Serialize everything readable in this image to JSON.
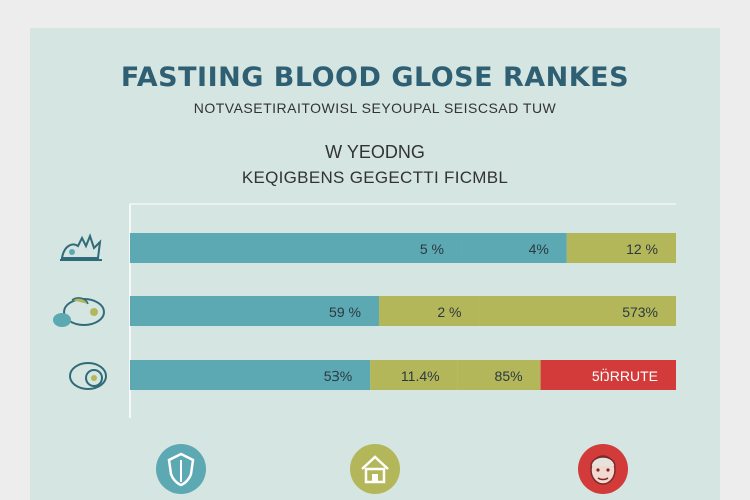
{
  "header": {
    "title": "FASTIING BLOOD GLOSE RANKES",
    "subtitle": "NOTVASETIRAITOWISL SEYOUPAL SEISCSAD TUW",
    "heading2": "W YEODNG",
    "heading3": "KEQIGBENS GEGECTTI FICMBL"
  },
  "colors": {
    "teal": "#5ca8b3",
    "olive": "#b4b65a",
    "red": "#d33b3b",
    "title": "#2f5f72",
    "panel": "#d5e5e1"
  },
  "chart_data": {
    "type": "bar",
    "orientation": "horizontal",
    "stacked": true,
    "grid": false,
    "rows": [
      {
        "icon": "hands-illustration-icon",
        "segments": [
          {
            "value": 76,
            "label": "5 %",
            "color": "#5ca8b3"
          },
          {
            "value": 24,
            "label": "4%",
            "color": "#5ca8b3"
          },
          {
            "value": 25,
            "label": "12 %",
            "color": "#b4b65a"
          }
        ]
      },
      {
        "icon": "organ-illustration-icon",
        "segments": [
          {
            "value": 57,
            "label": "59 %",
            "color": "#5ca8b3"
          },
          {
            "value": 23,
            "label": "2 %",
            "color": "#b4b65a"
          },
          {
            "value": 45,
            "label": "573%",
            "color": "#b4b65a"
          }
        ]
      },
      {
        "icon": "scale-illustration-icon",
        "segments": [
          {
            "value": 55,
            "label": "5Ɜ%",
            "color": "#5ca8b3"
          },
          {
            "value": 20,
            "label": "11.4%",
            "color": "#b4b65a"
          },
          {
            "value": 0,
            "label": "",
            "color": "#b4b65a"
          },
          {
            "value": 19,
            "label": "85%",
            "color": "#b4b65a"
          },
          {
            "value": 31,
            "label": "5Ŋ̈RRUTE",
            "color": "#d33b3b"
          }
        ]
      }
    ]
  },
  "bottom_icons": [
    {
      "name": "shield-drop-icon",
      "color": "#5ca8b3"
    },
    {
      "name": "house-icon",
      "color": "#b4b65a"
    },
    {
      "name": "person-face-icon",
      "color": "#d33b3b"
    }
  ]
}
